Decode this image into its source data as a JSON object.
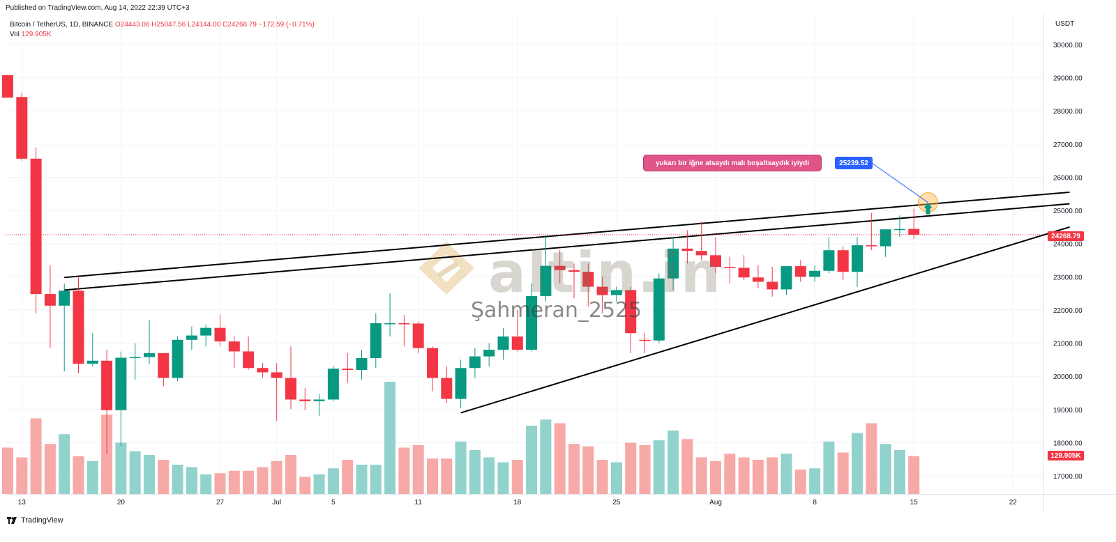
{
  "header": {
    "published": "Published on TradingView.com, Aug 14, 2022 22:39 UTC+3"
  },
  "legend": {
    "symbol": "Bitcoin / TetherUS, 1D, BINANCE",
    "open": "O24443.06",
    "high": "H25047.56",
    "low": "L24144.00",
    "close": "C24268.79",
    "change": "−172.59 (−0.71%)",
    "vol_label": "Vol",
    "vol_value": "129.905K"
  },
  "axis": {
    "unit": "USDT",
    "last_price": "24268.79",
    "last_volume": "129.905K"
  },
  "annotations": {
    "note": "yukarı bir iğne atsaydı malı boşaltsaydık iyiydi",
    "price_tag": "25239.52"
  },
  "watermark": {
    "logo_text": "altin.in",
    "author": "Şahmeran_2525"
  },
  "branding": {
    "name": "TradingView",
    "icon": "tradingview-logo-icon"
  },
  "colors": {
    "up": "#089981",
    "down": "#f23645",
    "vol_up": "#92d2cc",
    "vol_down": "#f7a9a7",
    "note_bg": "#e05589",
    "tag_bg": "#2962ff"
  },
  "chart_data": {
    "type": "candlestick",
    "symbol": "Bitcoin / TetherUS",
    "interval": "1D",
    "ylim": [
      16200,
      31000
    ],
    "y_ticks": [
      17000,
      18000,
      19000,
      20000,
      21000,
      22000,
      23000,
      24000,
      25000,
      26000,
      27000,
      28000,
      29000,
      30000
    ],
    "y_tick_labels": [
      "17000.00",
      "18000.00",
      "19000.00",
      "20000.00",
      "21000.00",
      "22000.00",
      "23000.00",
      "24000.00",
      "25000.00",
      "26000.00",
      "27000.00",
      "28000.00",
      "29000.00",
      "30000.00"
    ],
    "x_ticks": [
      {
        "label": "13",
        "i": 1
      },
      {
        "label": "20",
        "i": 8
      },
      {
        "label": "27",
        "i": 15
      },
      {
        "label": "Jul",
        "i": 19
      },
      {
        "label": "5",
        "i": 23
      },
      {
        "label": "11",
        "i": 29
      },
      {
        "label": "18",
        "i": 36
      },
      {
        "label": "25",
        "i": 43
      },
      {
        "label": "Aug",
        "i": 50
      },
      {
        "label": "8",
        "i": 57
      },
      {
        "label": "15",
        "i": 64
      },
      {
        "label": "22",
        "i": 71
      }
    ],
    "candles": [
      {
        "o": 29080,
        "h": 29080,
        "l": 28400,
        "c": 28400,
        "v": 0.38
      },
      {
        "o": 28420,
        "h": 28550,
        "l": 26500,
        "c": 26560,
        "v": 0.3
      },
      {
        "o": 26560,
        "h": 26900,
        "l": 21900,
        "c": 22480,
        "v": 0.62
      },
      {
        "o": 22480,
        "h": 23350,
        "l": 20850,
        "c": 22130,
        "v": 0.41
      },
      {
        "o": 22130,
        "h": 22800,
        "l": 20150,
        "c": 22580,
        "v": 0.49
      },
      {
        "o": 22580,
        "h": 22980,
        "l": 20100,
        "c": 20380,
        "v": 0.31
      },
      {
        "o": 20380,
        "h": 21300,
        "l": 20300,
        "c": 20470,
        "v": 0.27
      },
      {
        "o": 20470,
        "h": 20800,
        "l": 17650,
        "c": 18980,
        "v": 0.65
      },
      {
        "o": 18980,
        "h": 20750,
        "l": 17900,
        "c": 20560,
        "v": 0.42
      },
      {
        "o": 20560,
        "h": 21000,
        "l": 19900,
        "c": 20580,
        "v": 0.35
      },
      {
        "o": 20580,
        "h": 21700,
        "l": 20370,
        "c": 20700,
        "v": 0.32
      },
      {
        "o": 20700,
        "h": 20700,
        "l": 19700,
        "c": 19950,
        "v": 0.28
      },
      {
        "o": 19950,
        "h": 21200,
        "l": 19850,
        "c": 21100,
        "v": 0.24
      },
      {
        "o": 21100,
        "h": 21500,
        "l": 20800,
        "c": 21230,
        "v": 0.22
      },
      {
        "o": 21230,
        "h": 21560,
        "l": 20900,
        "c": 21460,
        "v": 0.16
      },
      {
        "o": 21460,
        "h": 21860,
        "l": 20900,
        "c": 21050,
        "v": 0.17
      },
      {
        "o": 21050,
        "h": 21200,
        "l": 20250,
        "c": 20750,
        "v": 0.19
      },
      {
        "o": 20750,
        "h": 21200,
        "l": 20200,
        "c": 20250,
        "v": 0.19
      },
      {
        "o": 20250,
        "h": 20400,
        "l": 19950,
        "c": 20120,
        "v": 0.22
      },
      {
        "o": 20120,
        "h": 20400,
        "l": 18650,
        "c": 19950,
        "v": 0.27
      },
      {
        "o": 19950,
        "h": 20900,
        "l": 19010,
        "c": 19300,
        "v": 0.32
      },
      {
        "o": 19300,
        "h": 19650,
        "l": 18980,
        "c": 19250,
        "v": 0.14
      },
      {
        "o": 19250,
        "h": 19470,
        "l": 18800,
        "c": 19300,
        "v": 0.16
      },
      {
        "o": 19300,
        "h": 20300,
        "l": 19250,
        "c": 20230,
        "v": 0.21
      },
      {
        "o": 20230,
        "h": 20700,
        "l": 19800,
        "c": 20190,
        "v": 0.28
      },
      {
        "o": 20190,
        "h": 20800,
        "l": 19900,
        "c": 20550,
        "v": 0.24
      },
      {
        "o": 20550,
        "h": 21900,
        "l": 20250,
        "c": 21600,
        "v": 0.24
      },
      {
        "o": 21600,
        "h": 22500,
        "l": 21200,
        "c": 21600,
        "v": 0.92
      },
      {
        "o": 21600,
        "h": 21850,
        "l": 20900,
        "c": 21590,
        "v": 0.38
      },
      {
        "o": 21590,
        "h": 21650,
        "l": 20700,
        "c": 20850,
        "v": 0.4
      },
      {
        "o": 20850,
        "h": 20900,
        "l": 19550,
        "c": 19950,
        "v": 0.29
      },
      {
        "o": 19950,
        "h": 20300,
        "l": 19200,
        "c": 19320,
        "v": 0.29
      },
      {
        "o": 19320,
        "h": 20500,
        "l": 19050,
        "c": 20250,
        "v": 0.43
      },
      {
        "o": 20250,
        "h": 20850,
        "l": 19950,
        "c": 20600,
        "v": 0.36
      },
      {
        "o": 20600,
        "h": 21000,
        "l": 20300,
        "c": 20800,
        "v": 0.3
      },
      {
        "o": 20800,
        "h": 21450,
        "l": 20500,
        "c": 21200,
        "v": 0.26
      },
      {
        "o": 21200,
        "h": 22000,
        "l": 20750,
        "c": 20800,
        "v": 0.28
      },
      {
        "o": 20800,
        "h": 22800,
        "l": 20750,
        "c": 22420,
        "v": 0.56
      },
      {
        "o": 22420,
        "h": 24250,
        "l": 22250,
        "c": 23330,
        "v": 0.61
      },
      {
        "o": 23330,
        "h": 23800,
        "l": 22800,
        "c": 23200,
        "v": 0.58
      },
      {
        "o": 23200,
        "h": 23400,
        "l": 22350,
        "c": 23150,
        "v": 0.41
      },
      {
        "o": 23150,
        "h": 23400,
        "l": 22100,
        "c": 22700,
        "v": 0.39
      },
      {
        "o": 22700,
        "h": 23000,
        "l": 21900,
        "c": 22450,
        "v": 0.28
      },
      {
        "o": 22450,
        "h": 22700,
        "l": 22250,
        "c": 22600,
        "v": 0.26
      },
      {
        "o": 22600,
        "h": 22700,
        "l": 20700,
        "c": 21300,
        "v": 0.42
      },
      {
        "o": 21100,
        "h": 21300,
        "l": 20700,
        "c": 21080,
        "v": 0.4
      },
      {
        "o": 21080,
        "h": 23100,
        "l": 21000,
        "c": 22950,
        "v": 0.44
      },
      {
        "o": 22950,
        "h": 24200,
        "l": 22600,
        "c": 23850,
        "v": 0.52
      },
      {
        "o": 23850,
        "h": 24400,
        "l": 23400,
        "c": 23780,
        "v": 0.45
      },
      {
        "o": 23780,
        "h": 24670,
        "l": 23500,
        "c": 23650,
        "v": 0.3
      },
      {
        "o": 23650,
        "h": 24200,
        "l": 23100,
        "c": 23300,
        "v": 0.27
      },
      {
        "o": 23300,
        "h": 23600,
        "l": 22800,
        "c": 23270,
        "v": 0.33
      },
      {
        "o": 23270,
        "h": 23650,
        "l": 22900,
        "c": 22980,
        "v": 0.3
      },
      {
        "o": 22980,
        "h": 23350,
        "l": 22650,
        "c": 22850,
        "v": 0.28
      },
      {
        "o": 22850,
        "h": 23300,
        "l": 22400,
        "c": 22620,
        "v": 0.3
      },
      {
        "o": 22620,
        "h": 23250,
        "l": 22450,
        "c": 23320,
        "v": 0.33
      },
      {
        "o": 23320,
        "h": 23500,
        "l": 22850,
        "c": 23000,
        "v": 0.2
      },
      {
        "o": 23000,
        "h": 23350,
        "l": 22850,
        "c": 23180,
        "v": 0.21
      },
      {
        "o": 23180,
        "h": 24200,
        "l": 23100,
        "c": 23800,
        "v": 0.43
      },
      {
        "o": 23800,
        "h": 23920,
        "l": 22900,
        "c": 23150,
        "v": 0.34
      },
      {
        "o": 23150,
        "h": 24200,
        "l": 22700,
        "c": 23950,
        "v": 0.5
      },
      {
        "o": 23950,
        "h": 24920,
        "l": 23800,
        "c": 23920,
        "v": 0.58
      },
      {
        "o": 23920,
        "h": 24400,
        "l": 23600,
        "c": 24430,
        "v": 0.41
      },
      {
        "o": 24430,
        "h": 24850,
        "l": 24200,
        "c": 24440,
        "v": 0.36
      },
      {
        "o": 24443.06,
        "h": 25047.56,
        "l": 24144,
        "c": 24268.79,
        "v": 0.31
      }
    ],
    "trendlines": [
      {
        "name": "upper-channel-line",
        "points": [
          [
            4,
            22980
          ],
          [
            75,
            25550
          ]
        ]
      },
      {
        "name": "middle-channel-line",
        "points": [
          [
            4,
            22600
          ],
          [
            75,
            25200
          ]
        ]
      },
      {
        "name": "lower-support-line",
        "points": [
          [
            32,
            18900
          ],
          [
            75,
            24500
          ]
        ]
      }
    ],
    "last_price": 24268.79,
    "annotated_price": 25239.52,
    "annotated_candle": 65
  }
}
